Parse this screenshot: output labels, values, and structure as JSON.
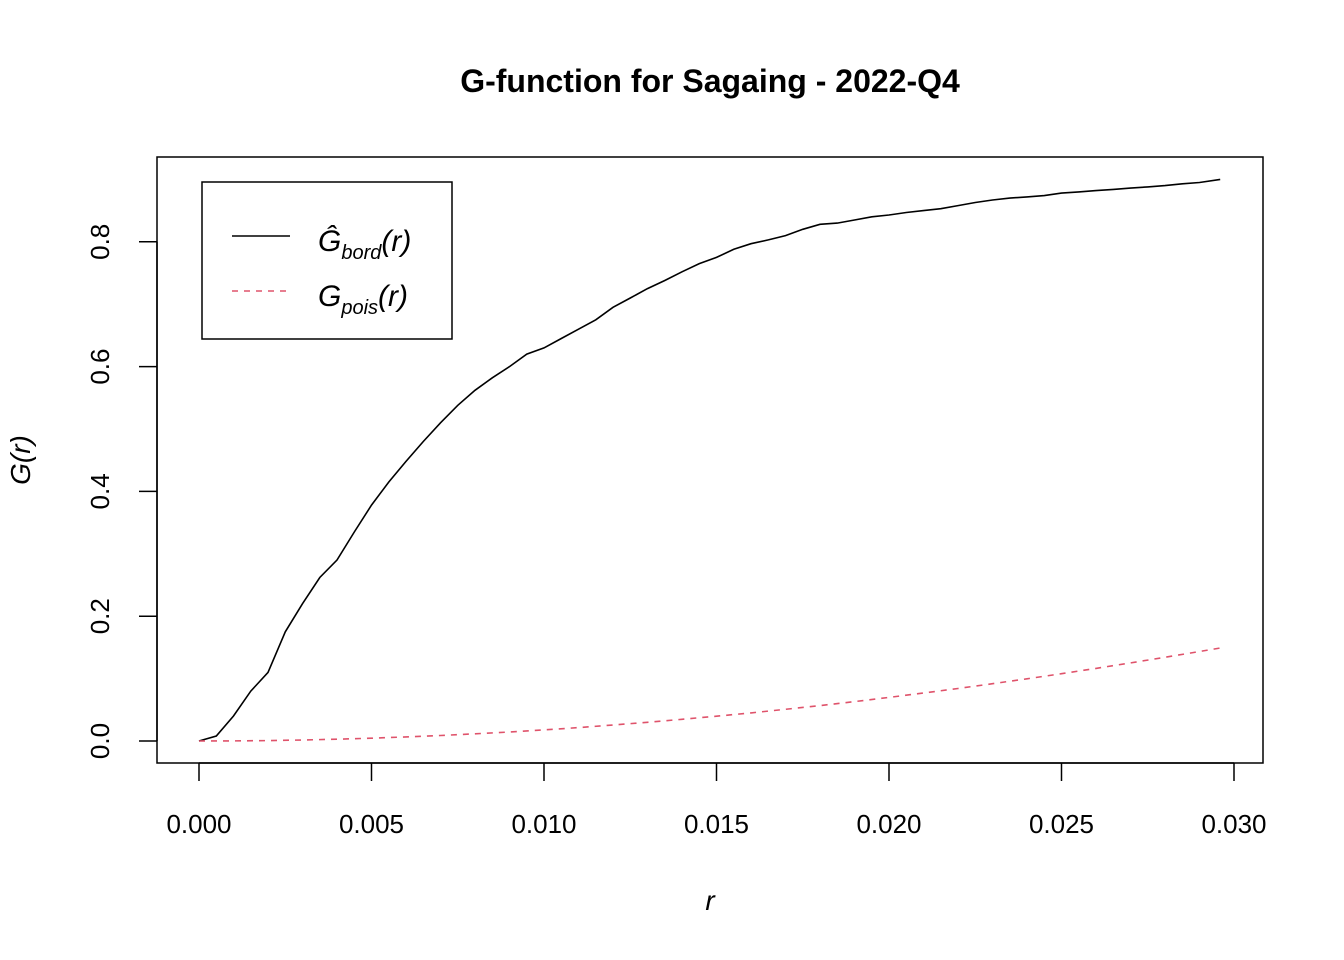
{
  "chart_data": {
    "type": "line",
    "title": "G-function for Sagaing - 2022-Q4",
    "xlabel": "r",
    "ylabel": "G(r)",
    "xlim": [
      0,
      0.03
    ],
    "ylim": [
      0,
      0.9
    ],
    "x_ticks": [
      "0.000",
      "0.005",
      "0.010",
      "0.015",
      "0.020",
      "0.025",
      "0.030"
    ],
    "y_ticks": [
      "0.0",
      "0.2",
      "0.4",
      "0.6",
      "0.8"
    ],
    "legend_position": "top-left",
    "series": [
      {
        "name": "Ĝ_bord(r)",
        "legend_main": "Ĝ",
        "legend_sub": "bord",
        "legend_tail": "(r)",
        "color": "#000000",
        "dash": "solid",
        "x": [
          0,
          0.0005,
          0.001,
          0.0015,
          0.002,
          0.0025,
          0.003,
          0.0035,
          0.004,
          0.0045,
          0.005,
          0.0055,
          0.006,
          0.0065,
          0.007,
          0.0075,
          0.008,
          0.0085,
          0.009,
          0.0095,
          0.01,
          0.0105,
          0.011,
          0.0115,
          0.012,
          0.0125,
          0.013,
          0.0135,
          0.014,
          0.0145,
          0.015,
          0.0155,
          0.016,
          0.0165,
          0.017,
          0.0175,
          0.018,
          0.0185,
          0.019,
          0.0195,
          0.02,
          0.0205,
          0.021,
          0.0215,
          0.022,
          0.0225,
          0.023,
          0.0235,
          0.024,
          0.0245,
          0.025,
          0.0255,
          0.026,
          0.0265,
          0.027,
          0.0275,
          0.028,
          0.0285,
          0.029,
          0.0296
        ],
        "y": [
          0,
          0.008,
          0.04,
          0.08,
          0.11,
          0.175,
          0.22,
          0.262,
          0.29,
          0.335,
          0.378,
          0.415,
          0.448,
          0.48,
          0.51,
          0.538,
          0.562,
          0.582,
          0.6,
          0.62,
          0.63,
          0.645,
          0.66,
          0.675,
          0.695,
          0.71,
          0.725,
          0.738,
          0.752,
          0.765,
          0.775,
          0.788,
          0.797,
          0.803,
          0.81,
          0.82,
          0.828,
          0.83,
          0.835,
          0.84,
          0.843,
          0.847,
          0.85,
          0.853,
          0.858,
          0.863,
          0.867,
          0.87,
          0.872,
          0.874,
          0.878,
          0.88,
          0.882,
          0.884,
          0.886,
          0.888,
          0.89,
          0.893,
          0.895,
          0.9
        ]
      },
      {
        "name": "G_pois(r)",
        "legend_main": "G",
        "legend_sub": "pois",
        "legend_tail": "(r)",
        "color": "#DF536B",
        "dash": "dashed",
        "x": [
          0,
          0.001,
          0.002,
          0.003,
          0.004,
          0.005,
          0.006,
          0.007,
          0.008,
          0.009,
          0.01,
          0.011,
          0.012,
          0.013,
          0.014,
          0.015,
          0.016,
          0.017,
          0.018,
          0.019,
          0.02,
          0.021,
          0.022,
          0.023,
          0.024,
          0.025,
          0.026,
          0.027,
          0.028,
          0.029,
          0.0296
        ],
        "y": [
          0,
          0.0002,
          0.0007,
          0.0016,
          0.0029,
          0.0045,
          0.0065,
          0.0088,
          0.0115,
          0.0145,
          0.0178,
          0.0215,
          0.0256,
          0.03,
          0.0347,
          0.0397,
          0.0451,
          0.0508,
          0.0568,
          0.0632,
          0.0699,
          0.0769,
          0.0842,
          0.0918,
          0.0996,
          0.1078,
          0.1163,
          0.1251,
          0.1341,
          0.1434,
          0.1491
        ]
      }
    ]
  }
}
